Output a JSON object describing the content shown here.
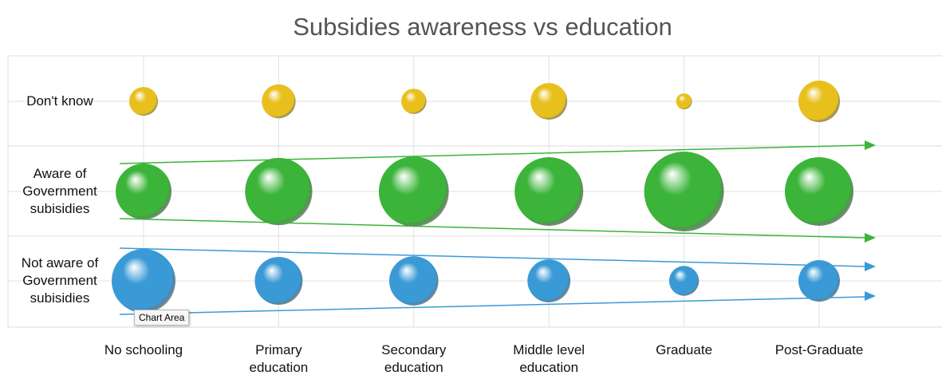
{
  "chart_data": {
    "type": "bubble",
    "title": "Subsidies awareness vs education",
    "categories": [
      "No schooling",
      "Primary education",
      "Secondary education",
      "Middle level education",
      "Graduate",
      "Post-Graduate"
    ],
    "series": [
      {
        "name": "Don't know",
        "color": "#e8c01e",
        "values": [
          13,
          18,
          10,
          21,
          4,
          27
        ]
      },
      {
        "name": "Aware of Government subisidies",
        "color": "#3cb43a",
        "values": [
          49,
          71,
          77,
          74,
          100,
          74
        ]
      },
      {
        "name": "Not aware of Government subisidies",
        "color": "#3a9ad6",
        "values": [
          64,
          36,
          38,
          29,
          14,
          27
        ]
      }
    ],
    "grid": true,
    "tooltip": "Chart Area"
  }
}
